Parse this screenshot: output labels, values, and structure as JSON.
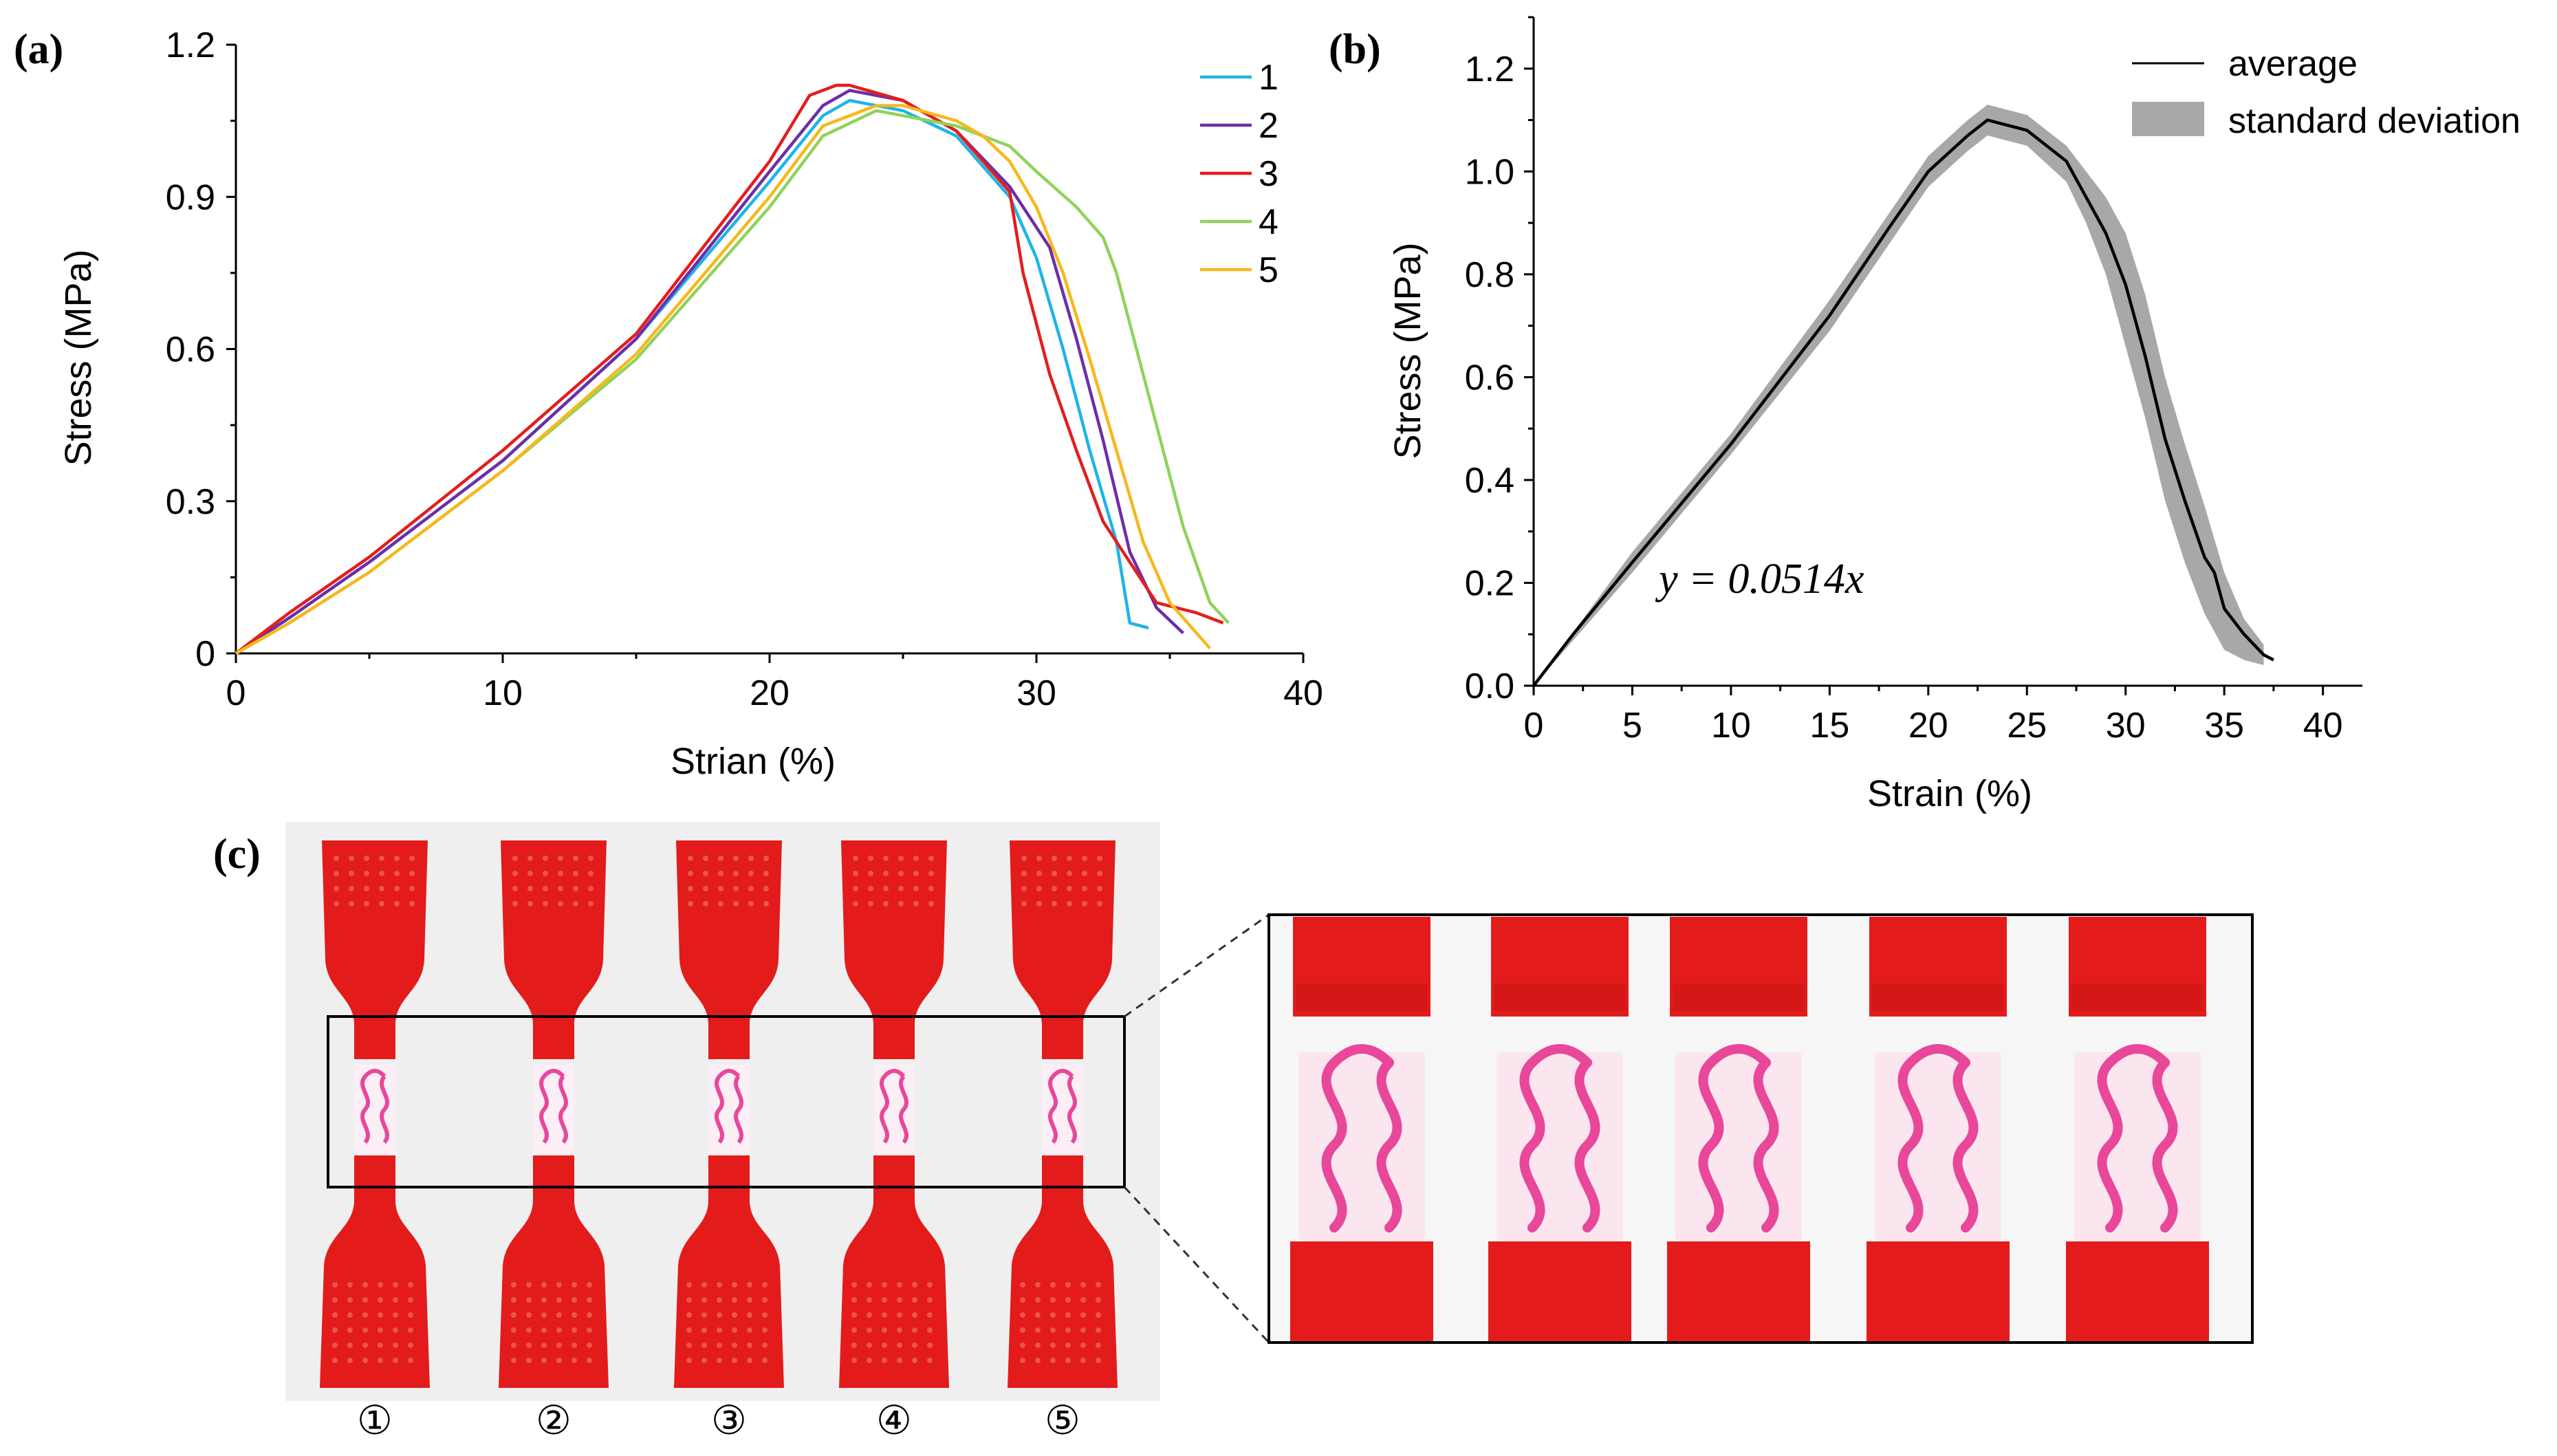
{
  "panels": {
    "a_label": "(a)",
    "b_label": "(b)",
    "c_label": "(c)"
  },
  "colors": {
    "s1": "#1fb4e6",
    "s2": "#6b2fa8",
    "s3": "#e41d1d",
    "s4": "#8fd35a",
    "s5": "#f7b81c",
    "avg": "#000000",
    "band": "#a8a8a8",
    "specimen_red": "#e31b1b",
    "specimen_pink": "#e8479a",
    "photo_bg": "#efefef"
  },
  "chart_data": [
    {
      "panel": "a",
      "type": "line",
      "title": "",
      "xlabel": "Strian (%)",
      "ylabel": "Stress (MPa)",
      "xlim": [
        0,
        40
      ],
      "ylim": [
        0,
        1.2
      ],
      "xticks": [
        "0",
        "10",
        "20",
        "30",
        "40"
      ],
      "yticks": [
        "0",
        "0.3",
        "0.6",
        "0.9",
        "1.2"
      ],
      "legend_position": "top-right",
      "series": [
        {
          "name": "1",
          "x": [
            0,
            2,
            5,
            10,
            15,
            20,
            22,
            23,
            25,
            27,
            29,
            30,
            31,
            32,
            33,
            33.5,
            34.2
          ],
          "y": [
            0,
            0.07,
            0.18,
            0.38,
            0.62,
            0.93,
            1.06,
            1.09,
            1.07,
            1.02,
            0.9,
            0.78,
            0.6,
            0.4,
            0.22,
            0.06,
            0.05
          ]
        },
        {
          "name": "2",
          "x": [
            0,
            2,
            5,
            10,
            15,
            20,
            22,
            23,
            25,
            27,
            29,
            30.5,
            31.5,
            32.5,
            33.5,
            34.5,
            35.5
          ],
          "y": [
            0,
            0.07,
            0.18,
            0.38,
            0.62,
            0.95,
            1.08,
            1.11,
            1.09,
            1.03,
            0.92,
            0.8,
            0.62,
            0.42,
            0.2,
            0.09,
            0.04
          ]
        },
        {
          "name": "3",
          "x": [
            0,
            2,
            5,
            10,
            15,
            20,
            21.5,
            22.5,
            23,
            25,
            27,
            29,
            29.5,
            30.5,
            31.5,
            32.5,
            33.5,
            34.5,
            36,
            37
          ],
          "y": [
            0,
            0.08,
            0.19,
            0.4,
            0.63,
            0.97,
            1.1,
            1.12,
            1.12,
            1.09,
            1.03,
            0.91,
            0.75,
            0.55,
            0.4,
            0.26,
            0.18,
            0.1,
            0.08,
            0.06
          ]
        },
        {
          "name": "4",
          "x": [
            0,
            2,
            5,
            10,
            15,
            20,
            22,
            24,
            25,
            27,
            29,
            30,
            31.5,
            32.5,
            33,
            33.5,
            34.5,
            35.5,
            36.5,
            37.2
          ],
          "y": [
            0,
            0.06,
            0.16,
            0.36,
            0.58,
            0.88,
            1.02,
            1.07,
            1.06,
            1.04,
            1.0,
            0.95,
            0.88,
            0.82,
            0.75,
            0.65,
            0.45,
            0.25,
            0.1,
            0.06
          ]
        },
        {
          "name": "5",
          "x": [
            0,
            2,
            5,
            10,
            15,
            20,
            22,
            24,
            25,
            27,
            28,
            29,
            30,
            31,
            32,
            33,
            34,
            35,
            36,
            36.5
          ],
          "y": [
            0,
            0.06,
            0.16,
            0.36,
            0.59,
            0.9,
            1.04,
            1.08,
            1.08,
            1.05,
            1.02,
            0.97,
            0.88,
            0.75,
            0.58,
            0.4,
            0.22,
            0.1,
            0.04,
            0.01
          ]
        }
      ]
    },
    {
      "panel": "b",
      "type": "area",
      "title": "",
      "xlabel": "Strain (%)",
      "ylabel": "Stress (MPa)",
      "xlim": [
        0,
        42
      ],
      "ylim": [
        0,
        1.3
      ],
      "xticks": [
        "0",
        "5",
        "10",
        "15",
        "20",
        "25",
        "30",
        "35",
        "40"
      ],
      "yticks": [
        "0.0",
        "0.2",
        "0.4",
        "0.6",
        "0.8",
        "1.0",
        "1.2"
      ],
      "annotation": "y = 0.0514x",
      "legend_position": "top-right",
      "series": [
        {
          "name": "average",
          "x": [
            0,
            2,
            5,
            10,
            15,
            18,
            20,
            22,
            23,
            25,
            27,
            28,
            29,
            30,
            31,
            32,
            33,
            34,
            34.5,
            35,
            36,
            37,
            37.5
          ],
          "y": [
            0,
            0.1,
            0.24,
            0.47,
            0.72,
            0.89,
            1.0,
            1.07,
            1.1,
            1.08,
            1.02,
            0.95,
            0.88,
            0.78,
            0.64,
            0.48,
            0.36,
            0.25,
            0.22,
            0.15,
            0.1,
            0.06,
            0.05
          ]
        },
        {
          "name": "standard deviation",
          "x": [
            0,
            5,
            10,
            15,
            20,
            22,
            23,
            25,
            27,
            28,
            29,
            30,
            31,
            32,
            33,
            34,
            35,
            36,
            37
          ],
          "low": [
            0,
            0.22,
            0.45,
            0.69,
            0.97,
            1.04,
            1.07,
            1.05,
            0.98,
            0.9,
            0.8,
            0.66,
            0.52,
            0.36,
            0.24,
            0.14,
            0.07,
            0.05,
            0.04
          ],
          "high": [
            0,
            0.26,
            0.49,
            0.75,
            1.03,
            1.1,
            1.13,
            1.11,
            1.05,
            1.0,
            0.95,
            0.88,
            0.76,
            0.6,
            0.47,
            0.35,
            0.22,
            0.13,
            0.08
          ]
        }
      ]
    }
  ],
  "photo": {
    "specimen_numbers": [
      "①",
      "②",
      "③",
      "④",
      "⑤"
    ],
    "zoom_count": 5
  }
}
